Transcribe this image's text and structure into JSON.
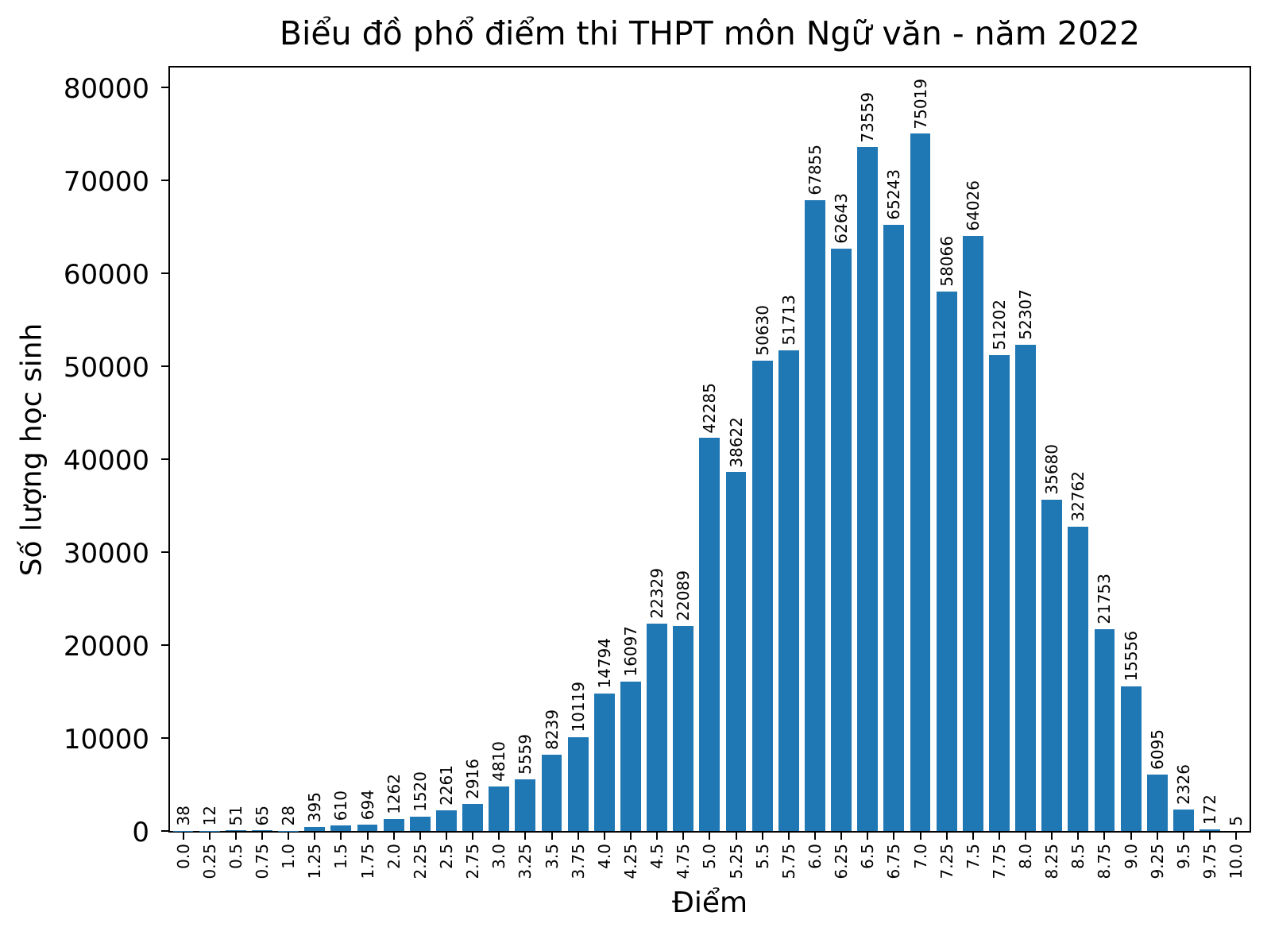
{
  "chart_data": {
    "type": "bar",
    "title": "Biểu đồ phổ điểm thi THPT môn Ngữ văn - năm 2022",
    "xlabel": "Điểm",
    "ylabel": "Số lượng học sinh",
    "categories": [
      "0.0",
      "0.25",
      "0.5",
      "0.75",
      "1.0",
      "1.25",
      "1.5",
      "1.75",
      "2.0",
      "2.25",
      "2.5",
      "2.75",
      "3.0",
      "3.25",
      "3.5",
      "3.75",
      "4.0",
      "4.25",
      "4.5",
      "4.75",
      "5.0",
      "5.25",
      "5.5",
      "5.75",
      "6.0",
      "6.25",
      "6.5",
      "6.75",
      "7.0",
      "7.25",
      "7.5",
      "7.75",
      "8.0",
      "8.25",
      "8.5",
      "8.75",
      "9.0",
      "9.25",
      "9.5",
      "9.75",
      "10.0"
    ],
    "values": [
      38,
      12,
      51,
      65,
      28,
      395,
      610,
      694,
      1262,
      1520,
      2261,
      2916,
      4810,
      5559,
      8239,
      10119,
      14794,
      16097,
      22329,
      22089,
      42285,
      38622,
      50630,
      51713,
      67855,
      62643,
      73559,
      65243,
      75019,
      58066,
      64026,
      51202,
      52307,
      35680,
      32762,
      21753,
      15556,
      6095,
      2326,
      172,
      5
    ],
    "ylim": [
      0,
      80000
    ],
    "yticks": [
      0,
      10000,
      20000,
      30000,
      40000,
      50000,
      60000,
      70000,
      80000
    ],
    "bar_color": "#1f77b4",
    "axis_color": "#000000",
    "background_color": "#ffffff",
    "grid": false,
    "legend": null,
    "bar_value_labels_rotated": true,
    "x_tick_labels_rotated": true
  }
}
